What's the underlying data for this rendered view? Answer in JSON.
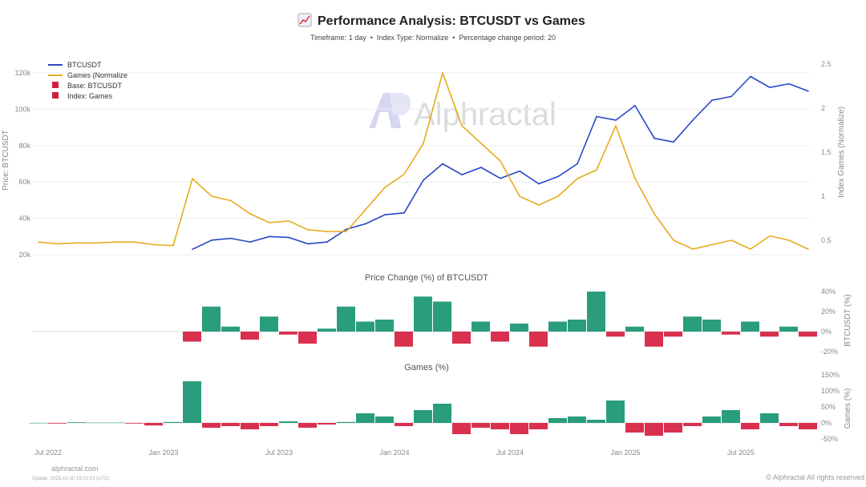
{
  "title_icon": "chart-increasing-icon",
  "footer": {
    "site": "alphractal.com",
    "update": "Update: 2025-10-20 15:02:13 (UTC)",
    "rights": "© Alphractal All rights reserved"
  },
  "watermark": "Alphractal",
  "colors": {
    "btc": "#2847c4",
    "games": "#e6ac1e",
    "pos": "#2a9d7c",
    "neg": "#d9304f",
    "base": "#d0203f"
  },
  "chart_data": [
    {
      "type": "line",
      "title": "Performance Analysis: BTCUSDT vs Games",
      "subtitle": "Timeframe: 1 day  •  Index Type: Normalize  •  Percentage change period: 20",
      "ylabel": "Price: BTCUSDT",
      "y2label": "Index Games (Normalize)",
      "ylim": [
        15000,
        125000
      ],
      "y2lim": [
        0.3,
        2.55
      ],
      "yticks": [
        "20k",
        "40k",
        "60k",
        "80k",
        "100k",
        "120k"
      ],
      "ytick_values": [
        20000,
        40000,
        60000,
        80000,
        100000,
        120000
      ],
      "y2ticks": [
        "0.5",
        "1",
        "1.5",
        "2",
        "2.5"
      ],
      "y2tick_values": [
        0.5,
        1,
        1.5,
        2,
        2.5
      ],
      "legend": {
        "placement": "top-left",
        "items": [
          "BTCUSDT",
          "Games (Normalize",
          "Base: BTCUSDT",
          "Index: Games"
        ]
      },
      "x_months_from": "2022-06",
      "series": [
        {
          "name": "BTCUSDT",
          "start": "2023-02",
          "values": [
            23000,
            28000,
            29000,
            27000,
            30000,
            29500,
            26000,
            27000,
            34000,
            37000,
            42000,
            43000,
            61000,
            70000,
            64000,
            68000,
            62000,
            66000,
            59000,
            63000,
            70000,
            96000,
            94000,
            102000,
            84000,
            82000,
            94000,
            105000,
            107000,
            118000,
            112000,
            114000,
            110000
          ]
        },
        {
          "name": "Games (Normalize",
          "start": "2022-06",
          "values": [
            0.48,
            0.46,
            0.47,
            0.47,
            0.48,
            0.48,
            0.45,
            0.44,
            1.2,
            1.0,
            0.95,
            0.8,
            0.7,
            0.72,
            0.62,
            0.6,
            0.6,
            0.85,
            1.1,
            1.25,
            1.6,
            2.4,
            1.8,
            1.6,
            1.4,
            1.0,
            0.9,
            1.0,
            1.2,
            1.3,
            1.8,
            1.2,
            0.8,
            0.5,
            0.4,
            0.45,
            0.5,
            0.4,
            0.55,
            0.5,
            0.4
          ]
        }
      ]
    },
    {
      "type": "bar",
      "title": "Price Change (%) of BTCUSDT",
      "y2label": "BTCUSDT (%)",
      "ylim": [
        -25,
        45
      ],
      "yticks": [
        "40%",
        "20%",
        "0%",
        "-20%"
      ],
      "ytick_values": [
        40,
        20,
        0,
        -20
      ],
      "start": "2023-02",
      "values": [
        -10,
        25,
        5,
        -8,
        15,
        -3,
        -12,
        3,
        25,
        10,
        12,
        -15,
        35,
        30,
        -12,
        10,
        -10,
        8,
        -15,
        10,
        12,
        40,
        -5,
        5,
        -15,
        -5,
        15,
        12,
        -3,
        10,
        -5,
        5,
        -5
      ]
    },
    {
      "type": "bar",
      "title": "Games (%)",
      "y2label": "Games (%)",
      "ylim": [
        -55,
        155
      ],
      "yticks": [
        "150%",
        "100%",
        "50%",
        "0%",
        "-50%"
      ],
      "ytick_values": [
        150,
        100,
        50,
        0,
        -50
      ],
      "start": "2022-06",
      "values": [
        0,
        -2,
        2,
        1,
        1,
        -2,
        -8,
        3,
        130,
        -15,
        -10,
        -20,
        -10,
        5,
        -15,
        -5,
        3,
        30,
        20,
        -10,
        40,
        60,
        -35,
        -15,
        -20,
        -35,
        -20,
        15,
        20,
        10,
        70,
        -30,
        -40,
        -30,
        -10,
        20,
        40,
        -20,
        30,
        -10,
        -20
      ],
      "xticks": [
        "Jul 2022",
        "Jan 2023",
        "Jul 2023",
        "Jan 2024",
        "Jul 2024",
        "Jan 2025",
        "Jul 2025"
      ],
      "xtick_months": [
        1,
        7,
        13,
        19,
        25,
        31,
        37
      ]
    }
  ]
}
